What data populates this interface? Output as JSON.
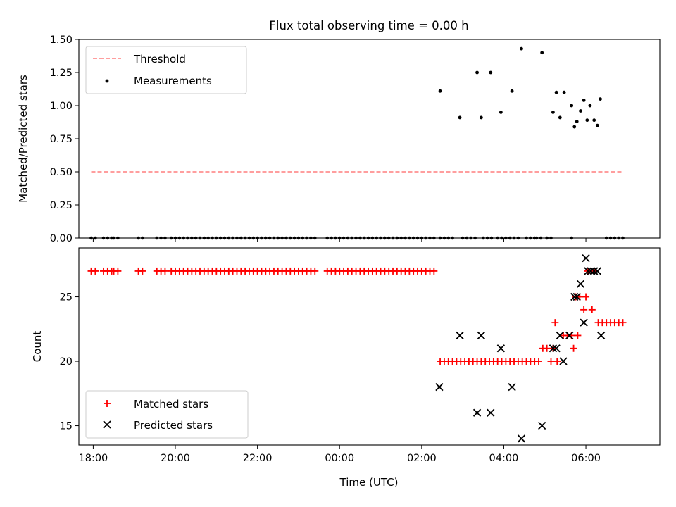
{
  "chart_data": [
    {
      "type": "scatter",
      "title": "Flux total observing time = 0.00 h",
      "xlabel": "",
      "ylabel": "Matched/Predicted stars",
      "ylim": [
        0,
        1.5
      ],
      "yticks": [
        "0.00",
        "0.25",
        "0.50",
        "0.75",
        "1.00",
        "1.25",
        "1.50"
      ],
      "yticks_values": [
        0,
        0.25,
        0.5,
        0.75,
        1.0,
        1.25,
        1.5
      ],
      "legend_position": "top-left",
      "threshold": {
        "name": "Threshold",
        "value": 0.5,
        "x_start": -6.05,
        "x_end": 6.9,
        "color": "#ff7f7f"
      },
      "measurements_name": "Measurements",
      "measurements_color": "#000000",
      "measurements_nonzero": [
        {
          "x": 2.45,
          "y": 1.11
        },
        {
          "x": 2.93,
          "y": 0.91
        },
        {
          "x": 3.35,
          "y": 1.25
        },
        {
          "x": 3.45,
          "y": 0.91
        },
        {
          "x": 3.68,
          "y": 1.25
        },
        {
          "x": 3.93,
          "y": 0.95
        },
        {
          "x": 4.2,
          "y": 1.11
        },
        {
          "x": 4.43,
          "y": 1.43
        },
        {
          "x": 4.93,
          "y": 1.4
        },
        {
          "x": 5.2,
          "y": 0.95
        },
        {
          "x": 5.28,
          "y": 1.1
        },
        {
          "x": 5.37,
          "y": 0.91
        },
        {
          "x": 5.47,
          "y": 1.1
        },
        {
          "x": 5.65,
          "y": 1.0
        },
        {
          "x": 5.72,
          "y": 0.84
        },
        {
          "x": 5.78,
          "y": 0.88
        },
        {
          "x": 5.87,
          "y": 0.96
        },
        {
          "x": 5.95,
          "y": 1.04
        },
        {
          "x": 6.03,
          "y": 0.89
        },
        {
          "x": 6.1,
          "y": 1.0
        },
        {
          "x": 6.2,
          "y": 0.89
        },
        {
          "x": 6.28,
          "y": 0.85
        },
        {
          "x": 6.35,
          "y": 1.05
        }
      ],
      "measurements_zero_x_ranges": [
        [
          -6.05,
          -5.95
        ],
        [
          -5.75,
          -5.55
        ],
        [
          -5.5,
          -5.35
        ],
        [
          -4.9,
          -4.8
        ],
        [
          -4.45,
          -4.25
        ],
        [
          -4.1,
          -2.7
        ],
        [
          -2.6,
          -0.6
        ],
        [
          -0.3,
          2.35
        ],
        [
          2.45,
          2.8
        ],
        [
          3.0,
          3.3
        ],
        [
          3.5,
          3.7
        ],
        [
          3.85,
          3.95
        ],
        [
          4.05,
          4.15
        ],
        [
          4.25,
          4.35
        ],
        [
          4.55,
          4.75
        ],
        [
          4.8,
          4.9
        ],
        [
          5.05,
          5.15
        ],
        [
          5.65,
          5.7
        ],
        [
          6.5,
          6.95
        ]
      ],
      "zero_spacing": 0.1
    },
    {
      "type": "scatter",
      "xlabel": "Time (UTC)",
      "ylabel": "Count",
      "ylim": [
        13.5,
        28.8
      ],
      "yticks": [
        "15",
        "20",
        "25"
      ],
      "yticks_values": [
        15,
        20,
        25
      ],
      "xlim": [
        -6.35,
        7.8
      ],
      "xticks": [
        "18:00",
        "20:00",
        "22:00",
        "00:00",
        "02:00",
        "04:00",
        "06:00"
      ],
      "xticks_values": [
        -6,
        -4,
        -2,
        0,
        2,
        4,
        6
      ],
      "legend_position": "bottom-left",
      "matched_name": "Matched stars",
      "matched_color": "#ff0000",
      "predicted_name": "Predicted stars",
      "predicted_color": "#000000",
      "matched_x_ranges": [
        {
          "x0": -6.05,
          "x1": -5.95,
          "y": 27
        },
        {
          "x0": -5.75,
          "x1": -5.55,
          "y": 27
        },
        {
          "x0": -5.5,
          "x1": -5.35,
          "y": 27
        },
        {
          "x0": -4.9,
          "x1": -4.8,
          "y": 27
        },
        {
          "x0": -4.45,
          "x1": -4.25,
          "y": 27
        },
        {
          "x0": -4.1,
          "x1": -2.7,
          "y": 27
        },
        {
          "x0": -2.6,
          "x1": -0.6,
          "y": 27
        },
        {
          "x0": -0.3,
          "x1": 2.35,
          "y": 27
        },
        {
          "x0": 2.45,
          "x1": 4.9,
          "y": 20
        },
        {
          "x0": 6.3,
          "x1": 6.95,
          "y": 23
        }
      ],
      "matched_points": [
        {
          "x": 4.95,
          "y": 21
        },
        {
          "x": 5.05,
          "y": 21
        },
        {
          "x": 5.15,
          "y": 20
        },
        {
          "x": 5.2,
          "y": 21
        },
        {
          "x": 5.25,
          "y": 23
        },
        {
          "x": 5.3,
          "y": 20
        },
        {
          "x": 5.45,
          "y": 22
        },
        {
          "x": 5.55,
          "y": 22
        },
        {
          "x": 5.65,
          "y": 22
        },
        {
          "x": 5.7,
          "y": 21
        },
        {
          "x": 5.75,
          "y": 25
        },
        {
          "x": 5.8,
          "y": 22
        },
        {
          "x": 5.85,
          "y": 25
        },
        {
          "x": 5.95,
          "y": 24
        },
        {
          "x": 6.0,
          "y": 25
        },
        {
          "x": 6.05,
          "y": 27
        },
        {
          "x": 6.15,
          "y": 24
        },
        {
          "x": 6.2,
          "y": 27
        }
      ],
      "predicted_points": [
        {
          "x": 2.43,
          "y": 18
        },
        {
          "x": 2.93,
          "y": 22
        },
        {
          "x": 3.35,
          "y": 16
        },
        {
          "x": 3.45,
          "y": 22
        },
        {
          "x": 3.68,
          "y": 16
        },
        {
          "x": 3.93,
          "y": 21
        },
        {
          "x": 4.2,
          "y": 18
        },
        {
          "x": 4.43,
          "y": 14
        },
        {
          "x": 4.93,
          "y": 15
        },
        {
          "x": 5.2,
          "y": 21
        },
        {
          "x": 5.28,
          "y": 21
        },
        {
          "x": 5.37,
          "y": 22
        },
        {
          "x": 5.45,
          "y": 20
        },
        {
          "x": 5.6,
          "y": 22
        },
        {
          "x": 5.72,
          "y": 25
        },
        {
          "x": 5.78,
          "y": 25
        },
        {
          "x": 5.87,
          "y": 26
        },
        {
          "x": 5.95,
          "y": 23
        },
        {
          "x": 6.0,
          "y": 28
        },
        {
          "x": 6.05,
          "y": 27
        },
        {
          "x": 6.12,
          "y": 27
        },
        {
          "x": 6.2,
          "y": 27
        },
        {
          "x": 6.28,
          "y": 27
        },
        {
          "x": 6.37,
          "y": 22
        }
      ]
    }
  ]
}
